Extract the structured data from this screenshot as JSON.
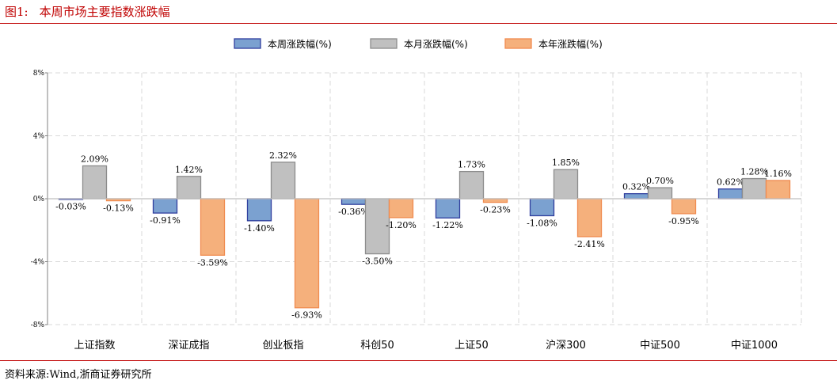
{
  "figure": {
    "number": "图1:",
    "title": "本周市场主要指数涨跌幅",
    "source": "资料来源:Wind,浙商证券研究所"
  },
  "colors": {
    "accent": "#c00000",
    "series_fill": [
      "#7ba1d0",
      "#c0c0c0",
      "#f5b07c"
    ],
    "series_stroke": [
      "#2f3e9e",
      "#8c8c8c",
      "#f08c50"
    ],
    "grid": "#d9d9d9",
    "zero_line": "#bfbfbf"
  },
  "chart_data": {
    "type": "bar",
    "categories": [
      "上证指数",
      "深证成指",
      "创业板指",
      "科创50",
      "上证50",
      "沪深300",
      "中证500",
      "中证1000"
    ],
    "series": [
      {
        "name": "本周涨跌幅(%)",
        "values": [
          -0.03,
          -0.91,
          -1.4,
          -0.36,
          -1.22,
          -1.08,
          0.32,
          0.62
        ],
        "labels": [
          "-0.03%",
          "-0.91%",
          "-1.40%",
          "-0.36%",
          "-1.22%",
          "-1.08%",
          "0.32%",
          "0.62%"
        ]
      },
      {
        "name": "本月涨跌幅(%)",
        "values": [
          2.09,
          1.42,
          2.32,
          -3.5,
          1.73,
          1.85,
          0.7,
          1.28
        ],
        "labels": [
          "2.09%",
          "1.42%",
          "2.32%",
          "-3.50%",
          "1.73%",
          "1.85%",
          "0.70%",
          "1.28%"
        ]
      },
      {
        "name": "本年涨跌幅(%)",
        "values": [
          -0.13,
          -3.59,
          -6.93,
          -1.2,
          -0.23,
          -2.41,
          -0.95,
          1.16
        ],
        "labels": [
          "-0.13%",
          "-3.59%",
          "-6.93%",
          "-1.20%",
          "-0.23%",
          "-2.41%",
          "-0.95%",
          "1.16%"
        ]
      }
    ],
    "ylim": [
      -8,
      8
    ],
    "yticks": [
      8,
      4,
      0,
      -4,
      -8
    ],
    "ytick_labels": [
      "8%",
      "4%",
      "0%",
      "-4%",
      "-8%"
    ],
    "grid": true,
    "legend_position": "top-center"
  }
}
